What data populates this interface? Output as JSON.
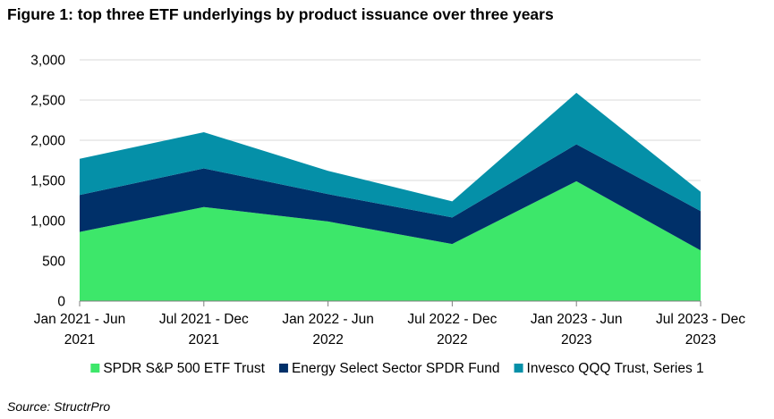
{
  "title": "Figure 1: top three ETF underlyings by product issuance over three years",
  "source": "Source: StructrPro",
  "chart_data": {
    "type": "area",
    "stacked": true,
    "categories": [
      [
        "Jan 2021 - Jun",
        "2021"
      ],
      [
        "Jul 2021 - Dec",
        "2021"
      ],
      [
        "Jan 2022 - Jun",
        "2022"
      ],
      [
        "Jul 2022 - Dec",
        "2022"
      ],
      [
        "Jan 2023 - Jun",
        "2023"
      ],
      [
        "Jul 2023 - Dec",
        "2023"
      ]
    ],
    "y_ticks": [
      "0",
      "500",
      "1,000",
      "1,500",
      "2,000",
      "2,500",
      "3,000"
    ],
    "ylim": [
      0,
      3000
    ],
    "grid": true,
    "legend_position": "bottom",
    "series": [
      {
        "name": "SPDR S&P 500 ETF Trust",
        "color": "#3de76a",
        "values": [
          860,
          1170,
          990,
          710,
          1490,
          630
        ]
      },
      {
        "name": "Energy Select Sector SPDR Fund",
        "color": "#003069",
        "values": [
          460,
          480,
          340,
          330,
          460,
          490
        ]
      },
      {
        "name": "Invesco QQQ Trust, Series 1",
        "color": "#0590a8",
        "values": [
          450,
          450,
          290,
          200,
          640,
          240
        ]
      }
    ]
  }
}
